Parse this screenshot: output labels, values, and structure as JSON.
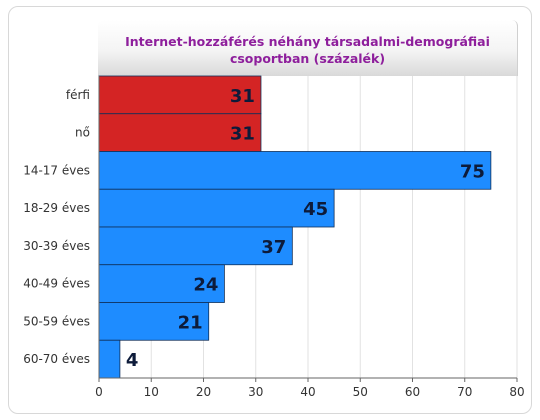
{
  "chart_data": {
    "type": "bar",
    "orientation": "horizontal",
    "title": "Internet-hozzáférés néhány társadalmi-demográfiai csoportban (százalék)",
    "title_lines": [
      "Internet-hozzáférés néhány társadalmi-demográfiai",
      "csoportban (százalék)"
    ],
    "categories": [
      "férfi",
      "nő",
      "14-17 éves",
      "18-29 éves",
      "30-39 éves",
      "40-49 éves",
      "50-59 éves",
      "60-70 éves"
    ],
    "values": [
      31,
      31,
      75,
      45,
      37,
      24,
      21,
      4
    ],
    "bar_colors": [
      "#d42424",
      "#d42424",
      "#1e8cff",
      "#1e8cff",
      "#1e8cff",
      "#1e8cff",
      "#1e8cff",
      "#1e8cff"
    ],
    "xlim": [
      0,
      80
    ],
    "xticks": [
      0,
      10,
      20,
      30,
      40,
      50,
      60,
      70,
      80
    ],
    "grid": true,
    "xlabel": "",
    "ylabel": ""
  }
}
